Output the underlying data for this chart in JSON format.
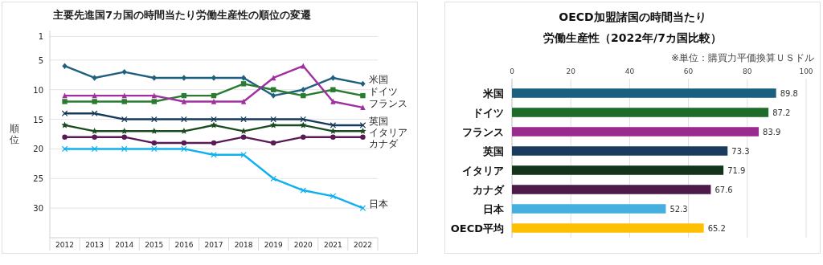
{
  "chart_data": [
    {
      "type": "line",
      "title": "主要先進国7カ国の時間当たり労働生産性の順位の変遷",
      "ylabel": "順位",
      "grid": "y",
      "line_style": "solid",
      "categories": [
        "2012",
        "2013",
        "2014",
        "2015",
        "2016",
        "2017",
        "2018",
        "2019",
        "2020",
        "2021",
        "2022"
      ],
      "ylim": [
        35,
        0
      ],
      "yticks": [
        1,
        5,
        10,
        15,
        20,
        25,
        30
      ],
      "series": [
        {
          "name": "米国",
          "color": "#1f6080",
          "marker": "diamond",
          "values": [
            6,
            8,
            7,
            8,
            8,
            8,
            8,
            11,
            10,
            8,
            9
          ]
        },
        {
          "name": "ドイツ",
          "color": "#2a7a30",
          "marker": "square",
          "values": [
            12,
            12,
            12,
            12,
            11,
            11,
            9,
            10,
            11,
            10,
            11
          ]
        },
        {
          "name": "フランス",
          "color": "#a030a0",
          "marker": "triangle",
          "values": [
            11,
            11,
            11,
            11,
            12,
            12,
            12,
            8,
            6,
            12,
            13
          ]
        },
        {
          "name": "英国",
          "color": "#163a5a",
          "marker": "cross",
          "values": [
            14,
            14,
            15,
            15,
            15,
            15,
            15,
            15,
            15,
            16,
            16
          ]
        },
        {
          "name": "イタリア",
          "color": "#1a4a20",
          "marker": "star",
          "values": [
            16,
            17,
            17,
            17,
            17,
            16,
            17,
            16,
            16,
            17,
            17
          ]
        },
        {
          "name": "カナダ",
          "color": "#5a1a55",
          "marker": "circle",
          "values": [
            18,
            18,
            18,
            19,
            19,
            19,
            18,
            19,
            18,
            18,
            18
          ]
        },
        {
          "name": "日本",
          "color": "#10b0f0",
          "marker": "cross",
          "values": [
            20,
            20,
            20,
            20,
            20,
            21,
            21,
            25,
            27,
            28,
            30
          ]
        }
      ]
    },
    {
      "type": "bar",
      "orientation": "horizontal",
      "title": "OECD加盟諸国の時間当たり",
      "subtitle": "労働生産性（2022年/7カ国比較）",
      "annotations": [
        "※単位：購買力平価換算ＵＳドル"
      ],
      "grid": "x",
      "data_labels": true,
      "categories": [
        "米国",
        "ドイツ",
        "フランス",
        "英国",
        "イタリア",
        "カナダ",
        "日本",
        "OECD平均"
      ],
      "values": [
        89.8,
        87.2,
        83.9,
        73.3,
        71.9,
        67.6,
        52.3,
        65.2
      ],
      "colors": [
        "#1a5e80",
        "#1e6b2a",
        "#9b2a8f",
        "#1a3a5e",
        "#13341a",
        "#4e1a4a",
        "#45b0e0",
        "#ffc000"
      ],
      "xlim": [
        0,
        100
      ],
      "xticks": [
        0,
        20,
        40,
        60,
        80,
        100
      ]
    }
  ]
}
